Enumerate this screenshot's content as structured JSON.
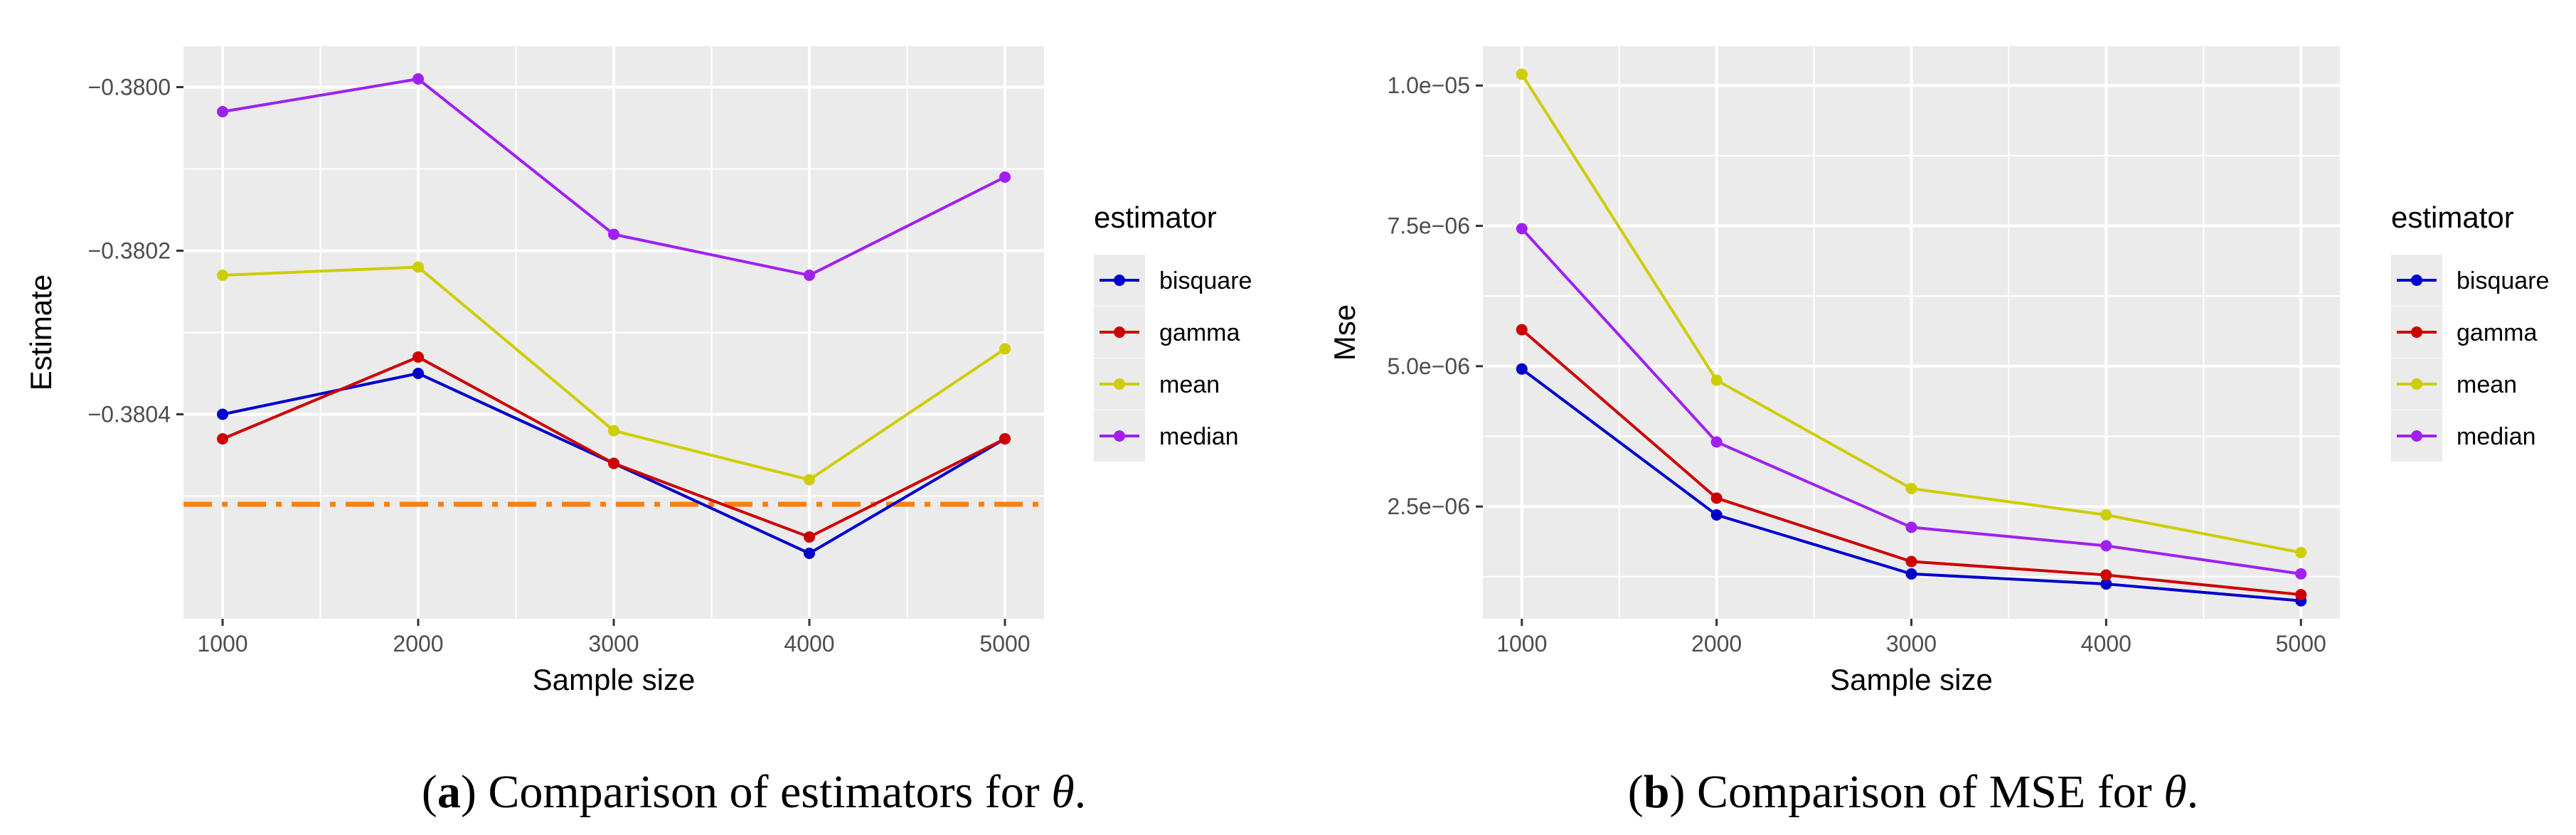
{
  "colors": {
    "bisquare": "#0000cd",
    "gamma": "#cd0000",
    "mean": "#cdcd00",
    "median": "#a020f0",
    "reference": "#ff7f0e",
    "panel": "#ebebeb",
    "grid": "#ffffff"
  },
  "chart_data": [
    {
      "type": "line",
      "panel_label": "a",
      "caption_text": " Comparison of estimators for ",
      "caption_symbol": "θ",
      "caption_end": ".",
      "xlabel": "Sample size",
      "ylabel": "Estimate",
      "x": [
        1000,
        2000,
        3000,
        4000,
        5000
      ],
      "x_tick_labels": [
        "1000",
        "2000",
        "3000",
        "4000",
        "5000"
      ],
      "xlim": [
        800,
        5200
      ],
      "y_ticks": [
        -0.3804,
        -0.3802,
        -0.38
      ],
      "y_tick_labels": [
        "−0.3804",
        "−0.3802",
        "−0.3800"
      ],
      "ylim": [
        -0.38065,
        -0.37995
      ],
      "reference_line": {
        "value": -0.38051,
        "style": "dash-dot"
      },
      "legend_title": "estimator",
      "series": [
        {
          "name": "bisquare",
          "values": [
            -0.3804,
            -0.38035,
            -0.38046,
            -0.38057,
            -0.38043
          ]
        },
        {
          "name": "gamma",
          "values": [
            -0.38043,
            -0.38033,
            -0.38046,
            -0.38055,
            -0.38043
          ]
        },
        {
          "name": "mean",
          "values": [
            -0.38023,
            -0.38022,
            -0.38042,
            -0.38048,
            -0.38032
          ]
        },
        {
          "name": "median",
          "values": [
            -0.38003,
            -0.37999,
            -0.38018,
            -0.38023,
            -0.38011
          ]
        }
      ]
    },
    {
      "type": "line",
      "panel_label": "b",
      "caption_text": " Comparison of MSE for ",
      "caption_symbol": "θ",
      "caption_end": ".",
      "xlabel": "Sample size",
      "ylabel": "Mse",
      "x": [
        1000,
        2000,
        3000,
        4000,
        5000
      ],
      "x_tick_labels": [
        "1000",
        "2000",
        "3000",
        "4000",
        "5000"
      ],
      "xlim": [
        800,
        5200
      ],
      "y_ticks": [
        2.5e-06,
        5e-06,
        7.5e-06,
        1e-05
      ],
      "y_tick_labels": [
        "2.5e−06",
        "5.0e−06",
        "7.5e−06",
        "1.0e−05"
      ],
      "ylim": [
        5e-07,
        1.07e-05
      ],
      "legend_title": "estimator",
      "series": [
        {
          "name": "bisquare",
          "values": [
            4.95e-06,
            2.35e-06,
            1.3e-06,
            1.12e-06,
            8.2e-07
          ]
        },
        {
          "name": "gamma",
          "values": [
            5.65e-06,
            2.65e-06,
            1.52e-06,
            1.28e-06,
            9.3e-07
          ]
        },
        {
          "name": "mean",
          "values": [
            1.02e-05,
            4.75e-06,
            2.82e-06,
            2.35e-06,
            1.68e-06
          ]
        },
        {
          "name": "median",
          "values": [
            7.45e-06,
            3.65e-06,
            2.13e-06,
            1.8e-06,
            1.3e-06
          ]
        }
      ]
    }
  ]
}
